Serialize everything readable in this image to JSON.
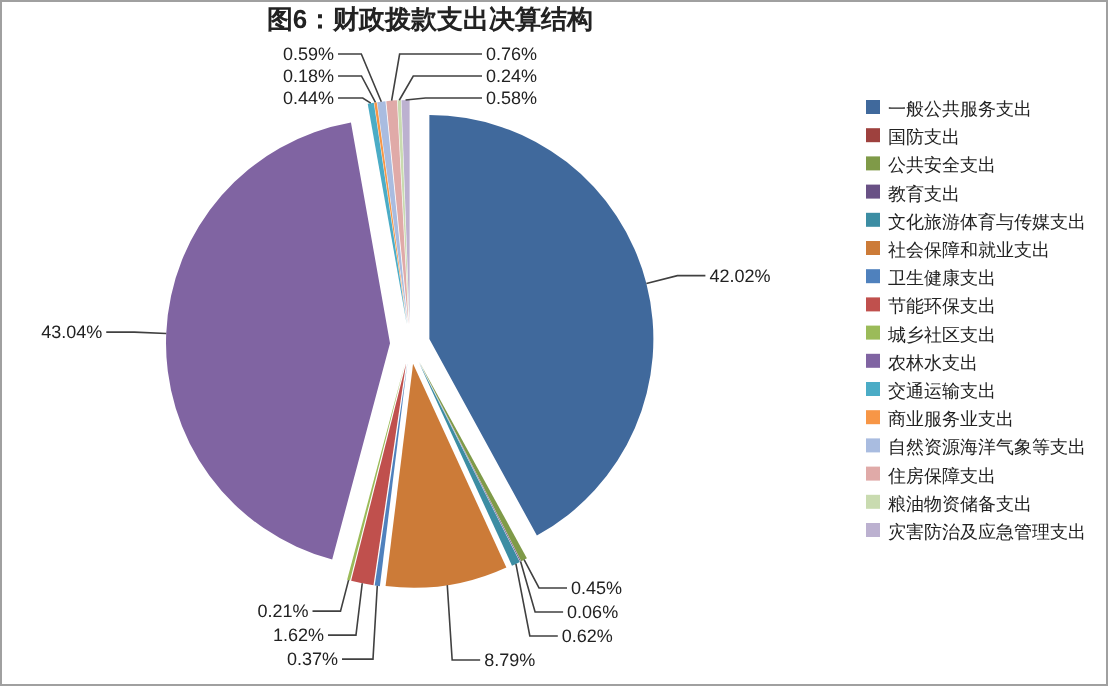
{
  "chart_data": {
    "type": "pie",
    "title": "图6：财政拨款支出决算结构",
    "categories": [
      "一般公共服务支出",
      "国防支出",
      "公共安全支出",
      "教育支出",
      "文化旅游体育与传媒支出",
      "社会保障和就业支出",
      "卫生健康支出",
      "节能环保支出",
      "城乡社区支出",
      "农林水支出",
      "交通运输支出",
      "商业服务业支出",
      "自然资源海洋气象等支出",
      "住房保障支出",
      "粮油物资储备支出",
      "灾害防治及应急管理支出"
    ],
    "values": [
      42.02,
      0,
      0.45,
      0.06,
      0.62,
      8.79,
      0.37,
      1.62,
      0.21,
      43.04,
      0.44,
      0.18,
      0.59,
      0.76,
      0.24,
      0.58
    ],
    "value_labels": [
      "42.02%",
      null,
      "0.45%",
      "0.06%",
      "0.62%",
      "8.79%",
      "0.37%",
      "1.62%",
      "0.21%",
      "43.04%",
      "0.44%",
      "0.18%",
      "0.59%",
      "0.76%",
      "0.24%",
      "0.58%"
    ],
    "colors": [
      "#40699c",
      "#9e413e",
      "#7f9a48",
      "#695185",
      "#3c8da3",
      "#cc7b38",
      "#4f81bd",
      "#c0504d",
      "#9bbb59",
      "#8064a2",
      "#4bacc6",
      "#f79646",
      "#a9bce0",
      "#e0aaa8",
      "#c9dbb0",
      "#bcb1d0"
    ],
    "legend": "right"
  }
}
